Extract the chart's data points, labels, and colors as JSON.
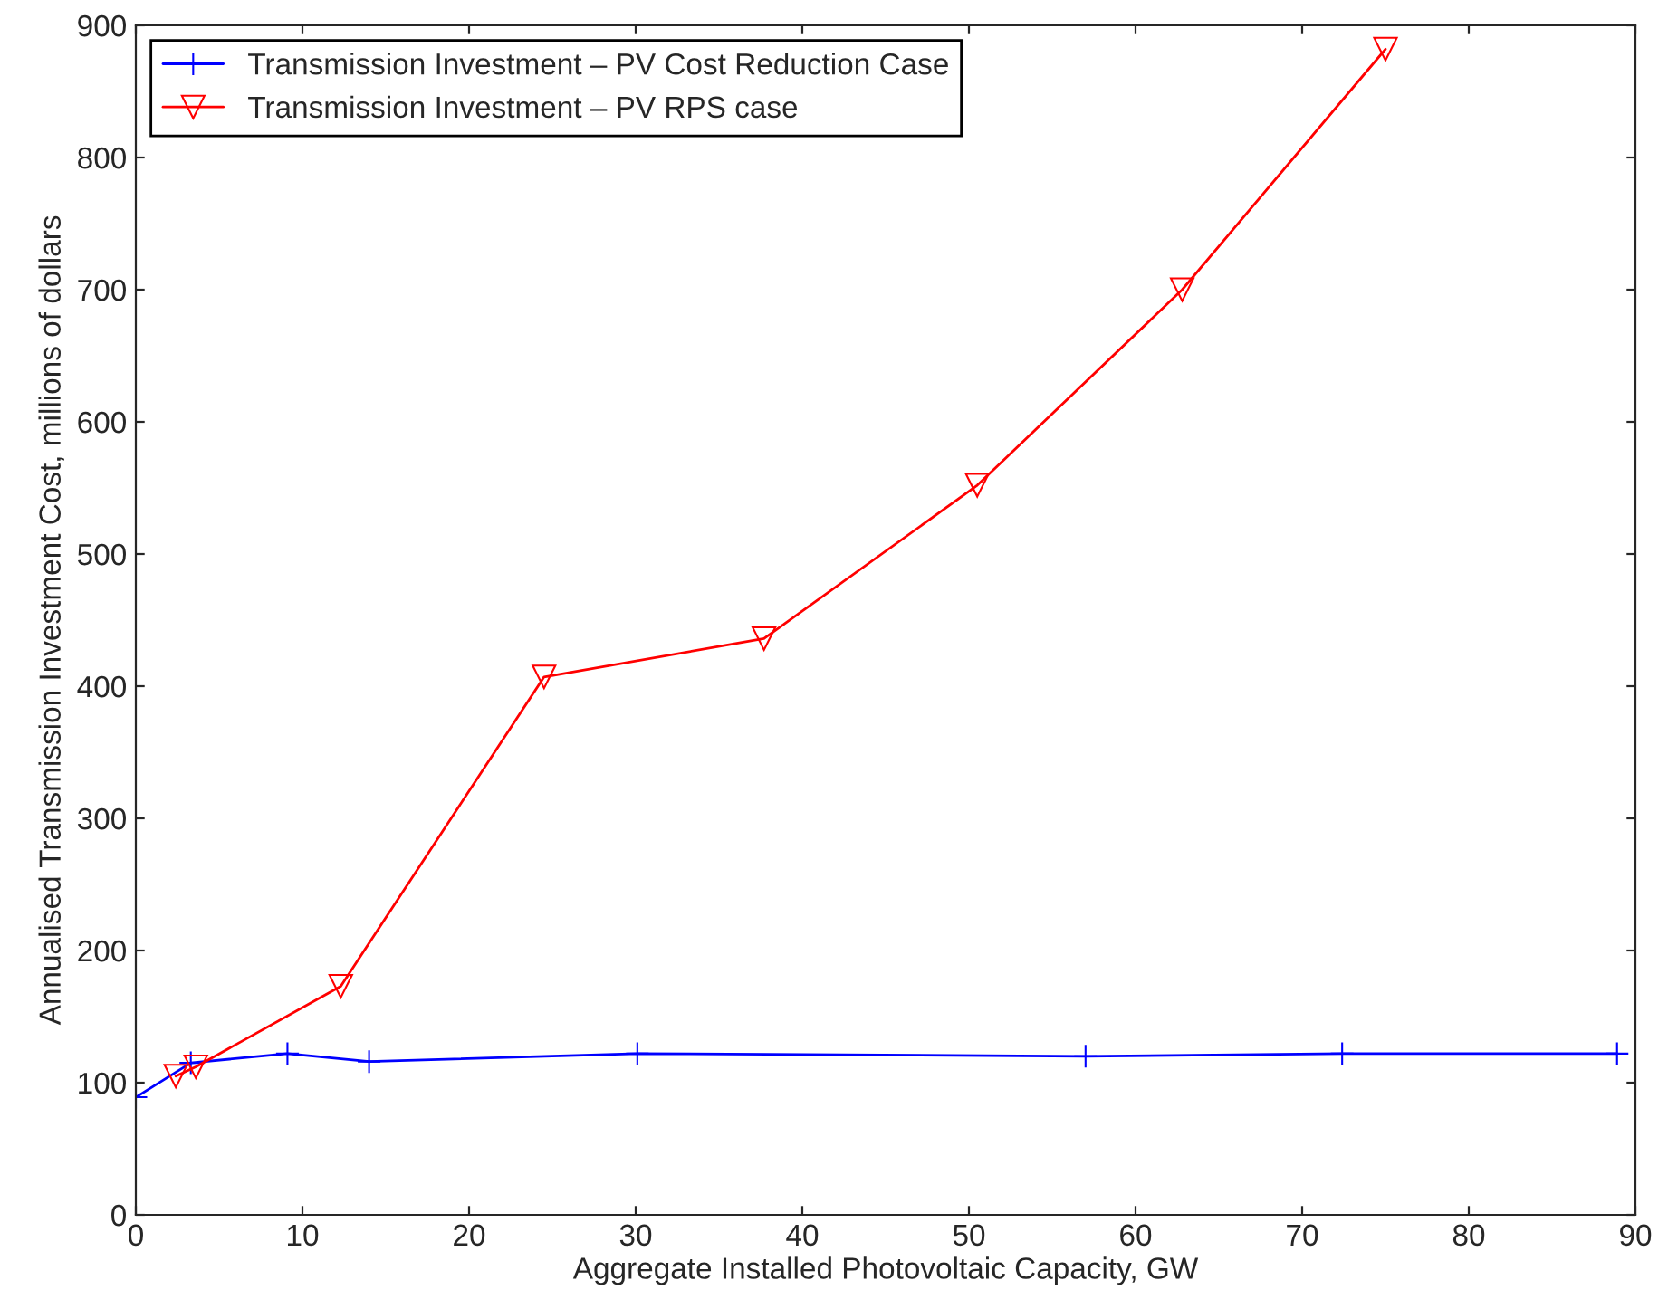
{
  "chart_data": {
    "type": "line",
    "xlabel": "Aggregate Installed Photovoltaic Capacity, GW",
    "ylabel": "Annualised Transmission Investment Cost, millions of dollars",
    "xlim": [
      0,
      90
    ],
    "xticks": [
      0,
      10,
      20,
      30,
      40,
      50,
      60,
      70,
      80,
      90
    ],
    "ylim": [
      0,
      900
    ],
    "yticks": [
      0,
      100,
      200,
      300,
      400,
      500,
      600,
      700,
      800,
      900
    ],
    "grid": false,
    "legend": "top left",
    "line_style": "solid",
    "series": [
      {
        "name": "Transmission Investment – PV Cost Reduction Case",
        "color": "#0000ff",
        "marker": "cross",
        "x": [
          0,
          3.3,
          9.1,
          14,
          30.1,
          57,
          72.4,
          88.9
        ],
        "values": [
          89,
          115,
          122,
          116,
          122,
          120,
          122,
          122
        ]
      },
      {
        "name": "Transmission Investment – PV RPS case",
        "color": "#ff0000",
        "marker": "triangle",
        "x": [
          2.4,
          3.6,
          12.3,
          24.5,
          37.7,
          50.5,
          62.8,
          75
        ],
        "values": [
          105,
          112,
          173,
          407,
          436,
          552,
          700,
          882
        ]
      }
    ]
  }
}
